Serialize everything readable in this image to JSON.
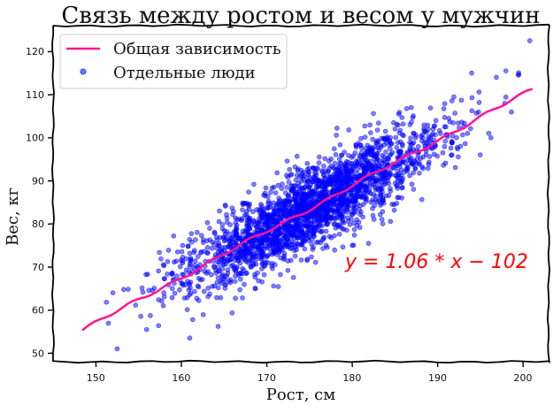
{
  "chart_data": {
    "type": "scatter",
    "title": "Связь между ростом и весом у мужчин",
    "xlabel": "Рост, см",
    "ylabel": "Вес, кг",
    "xlim": [
      145,
      203
    ],
    "ylim": [
      48,
      126
    ],
    "x_ticks": [
      150,
      160,
      170,
      180,
      190,
      200
    ],
    "y_ticks": [
      50,
      60,
      70,
      80,
      90,
      100,
      110,
      120
    ],
    "grid": false,
    "legend_position": "top-left",
    "series": [
      {
        "name": "Общая зависимость",
        "kind": "line",
        "color": "#ff1493",
        "slope": 1.06,
        "intercept": -102,
        "x_range": [
          148.5,
          201
        ]
      },
      {
        "name": "Отдельные люди",
        "kind": "scatter",
        "color": "#0000ff",
        "point_count": 2400,
        "x_center": 175,
        "x_spread": 7.5,
        "residual_spread": 4.7,
        "outliers": [
          {
            "x": 152.5,
            "y": 51
          },
          {
            "x": 161,
            "y": 53.5
          },
          {
            "x": 152,
            "y": 64
          },
          {
            "x": 200.8,
            "y": 122.5
          },
          {
            "x": 198,
            "y": 115.5
          },
          {
            "x": 194,
            "y": 115
          },
          {
            "x": 195,
            "y": 96
          },
          {
            "x": 196,
            "y": 101
          }
        ]
      }
    ],
    "annotations": [
      {
        "text": "y = 1.06 * x − 102",
        "x": 180,
        "y": 70,
        "color": "#ff0000"
      }
    ]
  }
}
